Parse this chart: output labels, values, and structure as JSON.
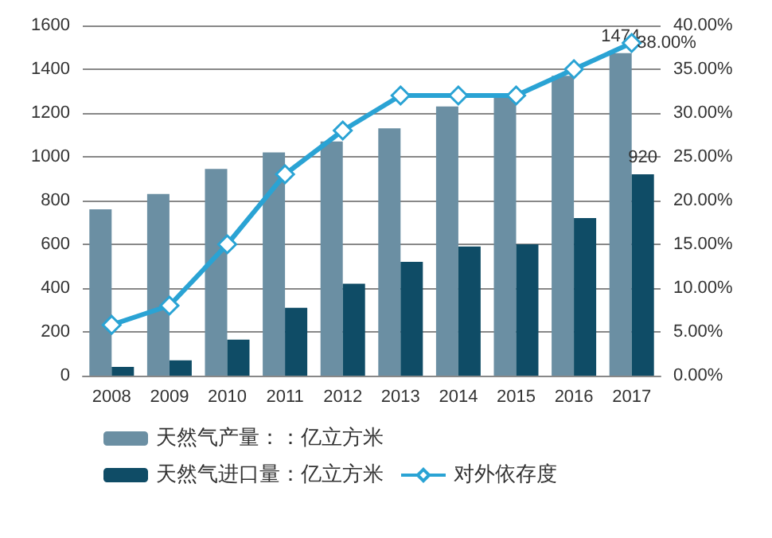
{
  "chart_data": {
    "type": "bar",
    "categories": [
      "2008",
      "2009",
      "2010",
      "2011",
      "2012",
      "2013",
      "2014",
      "2015",
      "2016",
      "2017"
    ],
    "series": [
      {
        "name": "天然气产量：：亿立方米",
        "color": "#6b8fa3",
        "values": [
          760,
          830,
          945,
          1020,
          1070,
          1130,
          1230,
          1270,
          1370,
          1474
        ],
        "value_labels": [
          null,
          null,
          null,
          null,
          null,
          null,
          null,
          null,
          null,
          "1474"
        ]
      },
      {
        "name": "天然气进口量：亿立方米",
        "color": "#0f4c66",
        "values": [
          40,
          70,
          165,
          310,
          420,
          520,
          590,
          600,
          720,
          920
        ],
        "value_labels": [
          null,
          null,
          null,
          null,
          null,
          null,
          null,
          null,
          null,
          "920"
        ]
      },
      {
        "name": "对外依存度",
        "type": "line",
        "axis": "y2",
        "color": "#2aa3d4",
        "marker": "diamond",
        "values": [
          5.8,
          8,
          15,
          23,
          28,
          32,
          32,
          32,
          35,
          38
        ],
        "value_labels": [
          null,
          null,
          null,
          null,
          null,
          null,
          null,
          null,
          null,
          "38.00%"
        ]
      }
    ],
    "ylim": [
      0,
      1600
    ],
    "yticks": [
      0,
      200,
      400,
      600,
      800,
      1000,
      1200,
      1400,
      1600
    ],
    "y2lim": [
      0,
      40
    ],
    "y2ticks": [
      {
        "value": 0,
        "label": "0.00%"
      },
      {
        "value": 5,
        "label": "5.00%"
      },
      {
        "value": 10,
        "label": "10.00%"
      },
      {
        "value": 15,
        "label": "15.00%"
      },
      {
        "value": 20,
        "label": "20.00%"
      },
      {
        "value": 25,
        "label": "25.00%"
      },
      {
        "value": 30,
        "label": "30.00%"
      },
      {
        "value": 35,
        "label": "35.00%"
      },
      {
        "value": 40,
        "label": "40.00%"
      }
    ],
    "grid": "y",
    "legend": "bottom"
  }
}
